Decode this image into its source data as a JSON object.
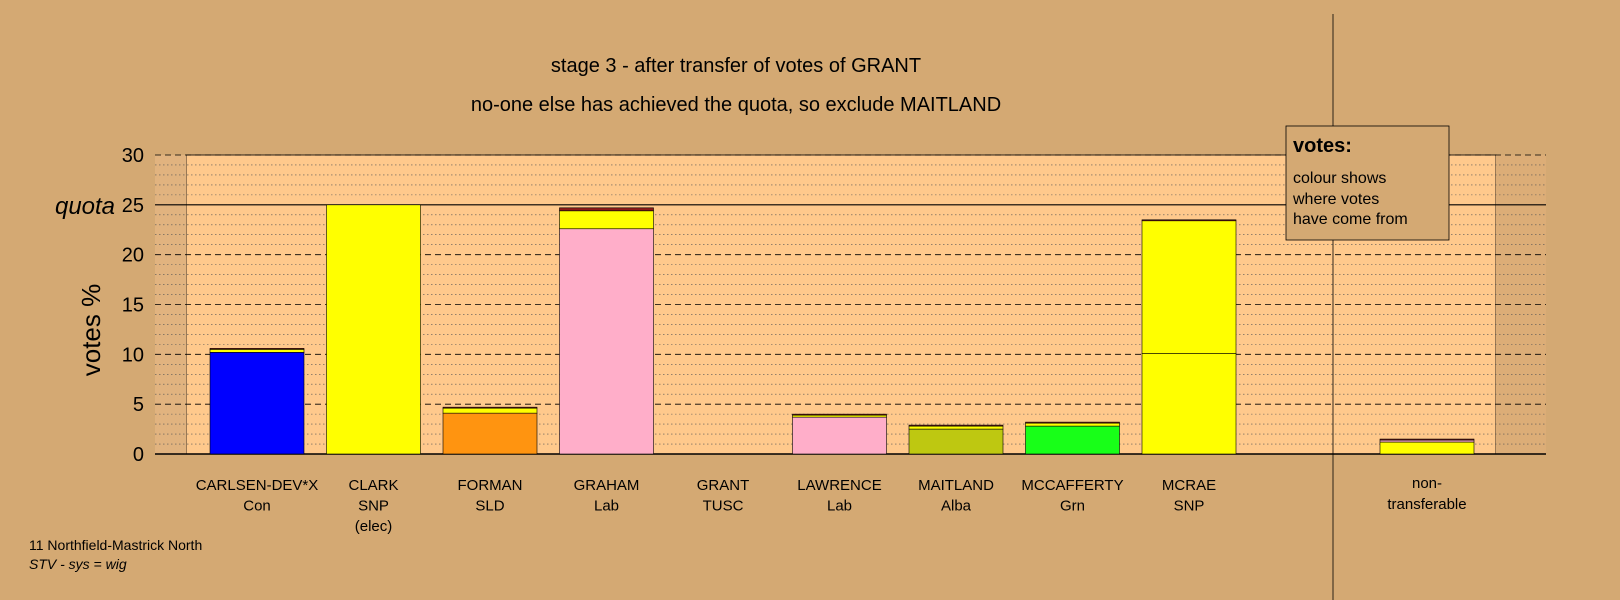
{
  "chart_data": {
    "type": "bar",
    "stacked": true,
    "title": "stage 3 - after transfer of votes of GRANT",
    "subtitle": "no-one else has achieved the quota, so exclude MAITLAND",
    "ylabel": "votes %",
    "ylim": [
      0,
      30
    ],
    "yticks": [
      "0",
      "5",
      "10",
      "15",
      "20",
      "25",
      "30"
    ],
    "quota": 25,
    "quota_label": "quota",
    "grid": true,
    "candidates": [
      {
        "name": "CARLSEN-DEV*X",
        "party": "Con",
        "note": "",
        "segments": [
          {
            "value": 10.2,
            "color": "#0000ff"
          },
          {
            "value": 0.3,
            "color": "#ffff00"
          },
          {
            "value": 0.1,
            "color": "#8b1a1a"
          }
        ]
      },
      {
        "name": "CLARK",
        "party": "SNP",
        "note": "(elec)",
        "segments": [
          {
            "value": 25.0,
            "color": "#ffff00"
          }
        ]
      },
      {
        "name": "FORMAN",
        "party": "SLD",
        "note": "",
        "segments": [
          {
            "value": 4.1,
            "color": "#ff9410"
          },
          {
            "value": 0.5,
            "color": "#ffff00"
          },
          {
            "value": 0.1,
            "color": "#8b1a1a"
          }
        ]
      },
      {
        "name": "GRAHAM",
        "party": "Lab",
        "note": "",
        "segments": [
          {
            "value": 22.6,
            "color": "#ffaec9"
          },
          {
            "value": 1.8,
            "color": "#ffff00"
          },
          {
            "value": 0.3,
            "color": "#8b1a1a"
          }
        ]
      },
      {
        "name": "GRANT",
        "party": "TUSC",
        "note": "",
        "segments": []
      },
      {
        "name": "LAWRENCE",
        "party": "Lab",
        "note": "",
        "segments": [
          {
            "value": 3.7,
            "color": "#ffaec9"
          },
          {
            "value": 0.2,
            "color": "#ffff00"
          },
          {
            "value": 0.1,
            "color": "#8b1a1a"
          }
        ]
      },
      {
        "name": "MAITLAND",
        "party": "Alba",
        "note": "",
        "segments": [
          {
            "value": 2.5,
            "color": "#bec811"
          },
          {
            "value": 0.3,
            "color": "#ffff00"
          },
          {
            "value": 0.1,
            "color": "#8b1a1a"
          }
        ]
      },
      {
        "name": "MCCAFFERTY",
        "party": "Grn",
        "note": "",
        "segments": [
          {
            "value": 2.8,
            "color": "#18ff18"
          },
          {
            "value": 0.3,
            "color": "#ffff00"
          },
          {
            "value": 0.1,
            "color": "#8b1a1a"
          }
        ]
      },
      {
        "name": "MCRAE",
        "party": "SNP",
        "note": "",
        "segments": [
          {
            "value": 10.1,
            "color": "#ffff00"
          },
          {
            "value": 13.3,
            "color": "#ffff00"
          },
          {
            "value": 0.1,
            "color": "#8b1a1a"
          }
        ]
      }
    ],
    "nontransferable": {
      "label_line1": "non-",
      "label_line2": "transferable",
      "segments": [
        {
          "value": 1.2,
          "color": "#ffff00"
        },
        {
          "value": 0.2,
          "color": "#ffaec9"
        },
        {
          "value": 0.1,
          "color": "#8b1a1a"
        }
      ]
    },
    "legend": {
      "title": "votes:",
      "lines": [
        "colour shows",
        "where votes",
        "have come from"
      ],
      "position": "top-right"
    }
  },
  "footer": {
    "line1": "11 Northfield-Mastrick North",
    "line2": "STV - sys = wig"
  }
}
